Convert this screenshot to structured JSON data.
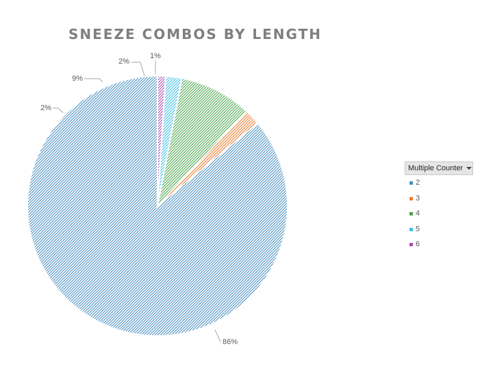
{
  "chart_data": {
    "type": "pie",
    "title": "SNEEZE COMBOS BY LENGTH",
    "categories": [
      "2",
      "3",
      "4",
      "5",
      "6"
    ],
    "values": [
      86,
      2,
      9,
      2,
      1
    ],
    "data_labels": [
      "86%",
      "2%",
      "9%",
      "2%",
      "1%"
    ],
    "colors": [
      "#4a90c2",
      "#ed7d31",
      "#4aa54a",
      "#3fc1e8",
      "#b04cb0"
    ],
    "legend": {
      "title": "Multiple Counter",
      "placement": "right"
    },
    "start_angle_deg": -90,
    "direction": "counterclockwise"
  }
}
